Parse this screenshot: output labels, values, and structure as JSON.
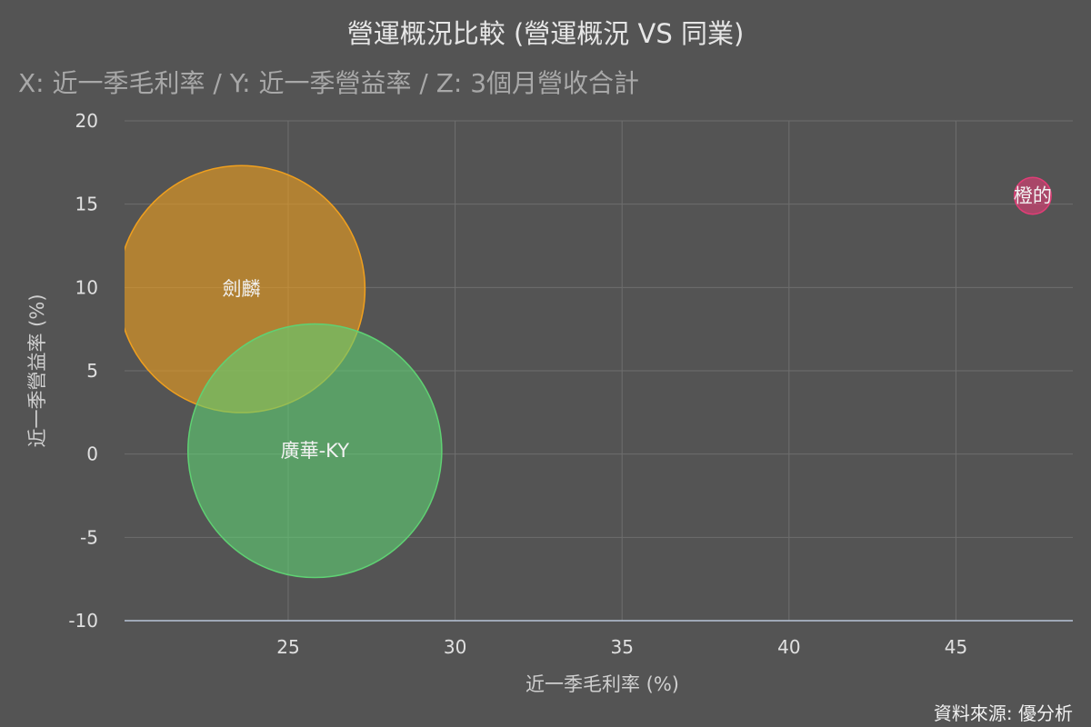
{
  "title": "營運概況比較 (營運概況 VS 同業)",
  "subtitle": "X: 近一季毛利率 / Y: 近一季營益率 / Z: 3個月營收合計",
  "credits": "資料來源: 優分析",
  "chart_data": {
    "type": "scatter",
    "variant": "bubble",
    "xlabel": "近一季毛利率 (%)",
    "ylabel": "近一季營益率 (%)",
    "xlim": [
      20.1,
      48.5
    ],
    "ylim": [
      -10,
      20
    ],
    "x_ticks": [
      25,
      30,
      35,
      40,
      45
    ],
    "y_ticks": [
      -10,
      -5,
      0,
      5,
      10,
      15,
      20
    ],
    "grid": true,
    "series": [
      {
        "name": "劍麟",
        "x": 23.6,
        "y": 9.9,
        "z": 7.4,
        "color": "#f0a01e"
      },
      {
        "name": "廣華-KY",
        "x": 25.8,
        "y": 0.2,
        "z": 7.6,
        "color": "#5fd173"
      },
      {
        "name": "橙的",
        "x": 47.3,
        "y": 15.5,
        "z": 1.1,
        "color": "#e23d77"
      }
    ]
  }
}
